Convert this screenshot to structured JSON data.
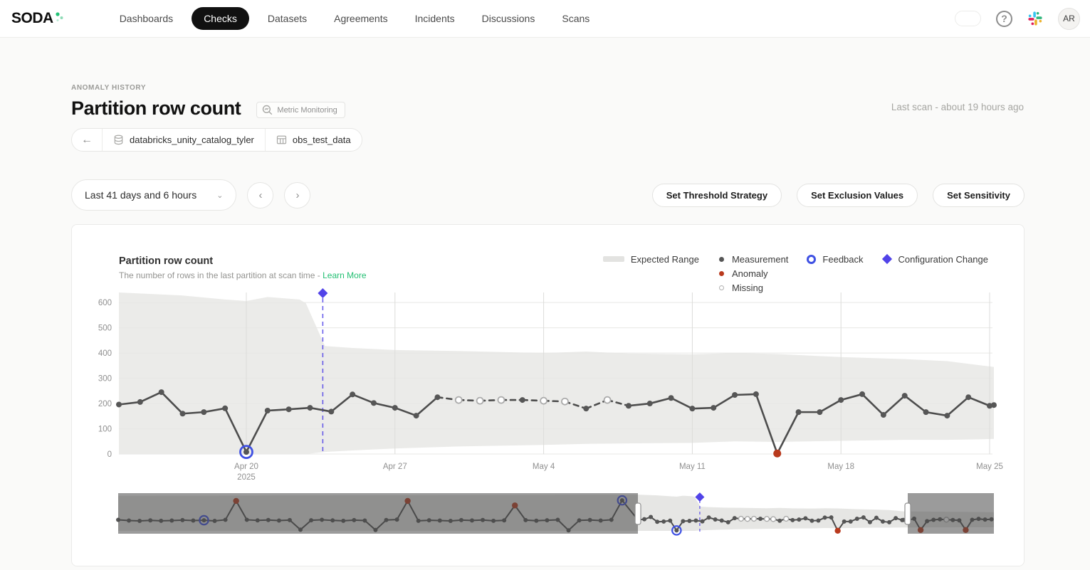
{
  "nav": {
    "logo": "SODA",
    "items": [
      {
        "label": "Dashboards",
        "active": false
      },
      {
        "label": "Checks",
        "active": true
      },
      {
        "label": "Datasets",
        "active": false
      },
      {
        "label": "Agreements",
        "active": false
      },
      {
        "label": "Incidents",
        "active": false
      },
      {
        "label": "Discussions",
        "active": false
      },
      {
        "label": "Scans",
        "active": false
      }
    ],
    "help_glyph": "?",
    "avatar": "AR"
  },
  "header": {
    "eyebrow": "ANOMALY HISTORY",
    "title": "Partition row count",
    "badge": "Metric Monitoring",
    "back_glyph": "←",
    "breadcrumb": {
      "datasource": "databricks_unity_catalog_tyler",
      "dataset": "obs_test_data"
    },
    "last_scan": "Last scan - about 19 hours ago"
  },
  "controls": {
    "range_label": "Last 41 days and 6 hours",
    "chevron": "⌄",
    "prev_glyph": "‹",
    "next_glyph": "›",
    "buttons": [
      "Set Threshold Strategy",
      "Set Exclusion Values",
      "Set Sensitivity"
    ]
  },
  "chart_card": {
    "title": "Partition row count",
    "subtitle": "The number of rows in the last partition at scan time - ",
    "learn_more": "Learn More",
    "legend": [
      {
        "label": "Expected Range"
      },
      {
        "label": "Measurement"
      },
      {
        "label": "Anomaly"
      },
      {
        "label": "Missing"
      },
      {
        "label": "Feedback"
      },
      {
        "label": "Configuration Change"
      }
    ]
  },
  "chart_data": {
    "type": "line",
    "title": "Partition row count",
    "ylabel": "row count",
    "ylim": [
      0,
      640
    ],
    "colors": {
      "accent_green": "#22bf72",
      "anomaly_red": "#b93a1d",
      "feedback_blue": "#3f51e3",
      "config_violet": "#5143e8",
      "band_gray": "#ebebe9",
      "mini_band_gray": "#e6e6e4",
      "line_gray": "#4d4d4d",
      "dot_gray": "#565656",
      "missing_fill": "#ffffff",
      "missing_stroke": "#ababab",
      "grid": "#e7e7e5",
      "grid_vertical": "#dcdcda",
      "axis_text": "#8f8f8f",
      "overlay": "rgba(72,72,72,0.55)"
    },
    "main": {
      "start_date": "Apr 14 2025",
      "last_day": 41.2,
      "y_ticks": [
        0,
        100,
        200,
        300,
        400,
        500,
        600
      ],
      "x_ticks": [
        {
          "d": 6,
          "lines": [
            "Apr 20",
            "2025"
          ]
        },
        {
          "d": 13,
          "lines": [
            "Apr 27"
          ]
        },
        {
          "d": 20,
          "lines": [
            "May 4"
          ]
        },
        {
          "d": 27,
          "lines": [
            "May 11"
          ]
        },
        {
          "d": 34,
          "lines": [
            "May 18"
          ]
        },
        {
          "d": 41,
          "lines": [
            "May 25"
          ]
        }
      ],
      "config_change_day": 9.6,
      "series": [
        [
          196,
          ""
        ],
        [
          206,
          ""
        ],
        [
          245,
          ""
        ],
        [
          160,
          ""
        ],
        [
          166,
          ""
        ],
        [
          181,
          ""
        ],
        [
          8,
          "F"
        ],
        [
          172,
          ""
        ],
        [
          177,
          ""
        ],
        [
          183,
          ""
        ],
        [
          168,
          ""
        ],
        [
          236,
          ""
        ],
        [
          202,
          ""
        ],
        [
          183,
          ""
        ],
        [
          152,
          ""
        ],
        [
          225,
          ""
        ],
        [
          214,
          "M"
        ],
        [
          211,
          "M"
        ],
        [
          214,
          "M"
        ],
        [
          214,
          ""
        ],
        [
          211,
          "M"
        ],
        [
          208,
          "M"
        ],
        [
          180,
          ""
        ],
        [
          214,
          "M"
        ],
        [
          191,
          ""
        ],
        [
          200,
          ""
        ],
        [
          222,
          ""
        ],
        [
          180,
          ""
        ],
        [
          183,
          ""
        ],
        [
          234,
          ""
        ],
        [
          237,
          ""
        ],
        [
          2,
          "A"
        ],
        [
          166,
          ""
        ],
        [
          166,
          ""
        ],
        [
          214,
          ""
        ],
        [
          237,
          ""
        ],
        [
          155,
          ""
        ],
        [
          231,
          ""
        ],
        [
          166,
          ""
        ],
        [
          152,
          ""
        ],
        [
          225,
          ""
        ],
        [
          191,
          ""
        ],
        [
          194,
          ""
        ]
      ],
      "band": [
        [
          0,
          640,
          0
        ],
        [
          3,
          628,
          0
        ],
        [
          5,
          612,
          0
        ],
        [
          6,
          606,
          0
        ],
        [
          7,
          622,
          0
        ],
        [
          8.5,
          612,
          0
        ],
        [
          8.8,
          598,
          0
        ],
        [
          9.7,
          428,
          8
        ],
        [
          11,
          420,
          14
        ],
        [
          13,
          412,
          22
        ],
        [
          16,
          408,
          30
        ],
        [
          20,
          400,
          36
        ],
        [
          22,
          406,
          40
        ],
        [
          24,
          398,
          42
        ],
        [
          27,
          395,
          44
        ],
        [
          29,
          400,
          50
        ],
        [
          31,
          396,
          48
        ],
        [
          34,
          384,
          52
        ],
        [
          37,
          376,
          56
        ],
        [
          39,
          368,
          56
        ],
        [
          40.5,
          352,
          58
        ],
        [
          41.2,
          345,
          60
        ]
      ]
    },
    "minimap": {
      "history": [
        [
          195,
          ""
        ],
        [
          183,
          ""
        ],
        [
          176,
          ""
        ],
        [
          186,
          ""
        ],
        [
          178,
          ""
        ],
        [
          183,
          ""
        ],
        [
          190,
          ""
        ],
        [
          182,
          ""
        ],
        [
          188,
          "F"
        ],
        [
          176,
          ""
        ],
        [
          196,
          ""
        ],
        [
          530,
          "A"
        ],
        [
          196,
          ""
        ],
        [
          185,
          ""
        ],
        [
          192,
          ""
        ],
        [
          183,
          ""
        ],
        [
          190,
          ""
        ],
        [
          20,
          ""
        ],
        [
          188,
          ""
        ],
        [
          196,
          ""
        ],
        [
          185,
          ""
        ],
        [
          178,
          ""
        ],
        [
          190,
          ""
        ],
        [
          183,
          ""
        ],
        [
          15,
          ""
        ],
        [
          192,
          ""
        ],
        [
          200,
          ""
        ],
        [
          530,
          "A"
        ],
        [
          178,
          ""
        ],
        [
          188,
          ""
        ],
        [
          182,
          ""
        ],
        [
          176,
          ""
        ],
        [
          190,
          ""
        ],
        [
          184,
          ""
        ],
        [
          192,
          ""
        ],
        [
          178,
          ""
        ],
        [
          186,
          ""
        ],
        [
          450,
          "A"
        ],
        [
          190,
          ""
        ],
        [
          180,
          ""
        ],
        [
          188,
          ""
        ],
        [
          195,
          ""
        ],
        [
          10,
          ""
        ],
        [
          185,
          ""
        ],
        [
          192,
          ""
        ],
        [
          183,
          ""
        ],
        [
          196,
          ""
        ],
        [
          540,
          "F"
        ]
      ],
      "ext": [
        [
          190,
          ""
        ],
        [
          215,
          ""
        ],
        [
          15,
          "A"
        ],
        [
          172,
          ""
        ],
        [
          195,
          ""
        ],
        [
          205,
          ""
        ],
        [
          198,
          "M"
        ],
        [
          192,
          ""
        ],
        [
          186,
          ""
        ],
        [
          15,
          "A"
        ],
        [
          196,
          ""
        ],
        [
          212,
          ""
        ],
        [
          200,
          ""
        ],
        [
          205,
          ""
        ]
      ],
      "history_band_upper": 620,
      "ext_band": {
        "u0": 345,
        "u1": 330,
        "l0": 58,
        "l1": 65
      }
    }
  }
}
